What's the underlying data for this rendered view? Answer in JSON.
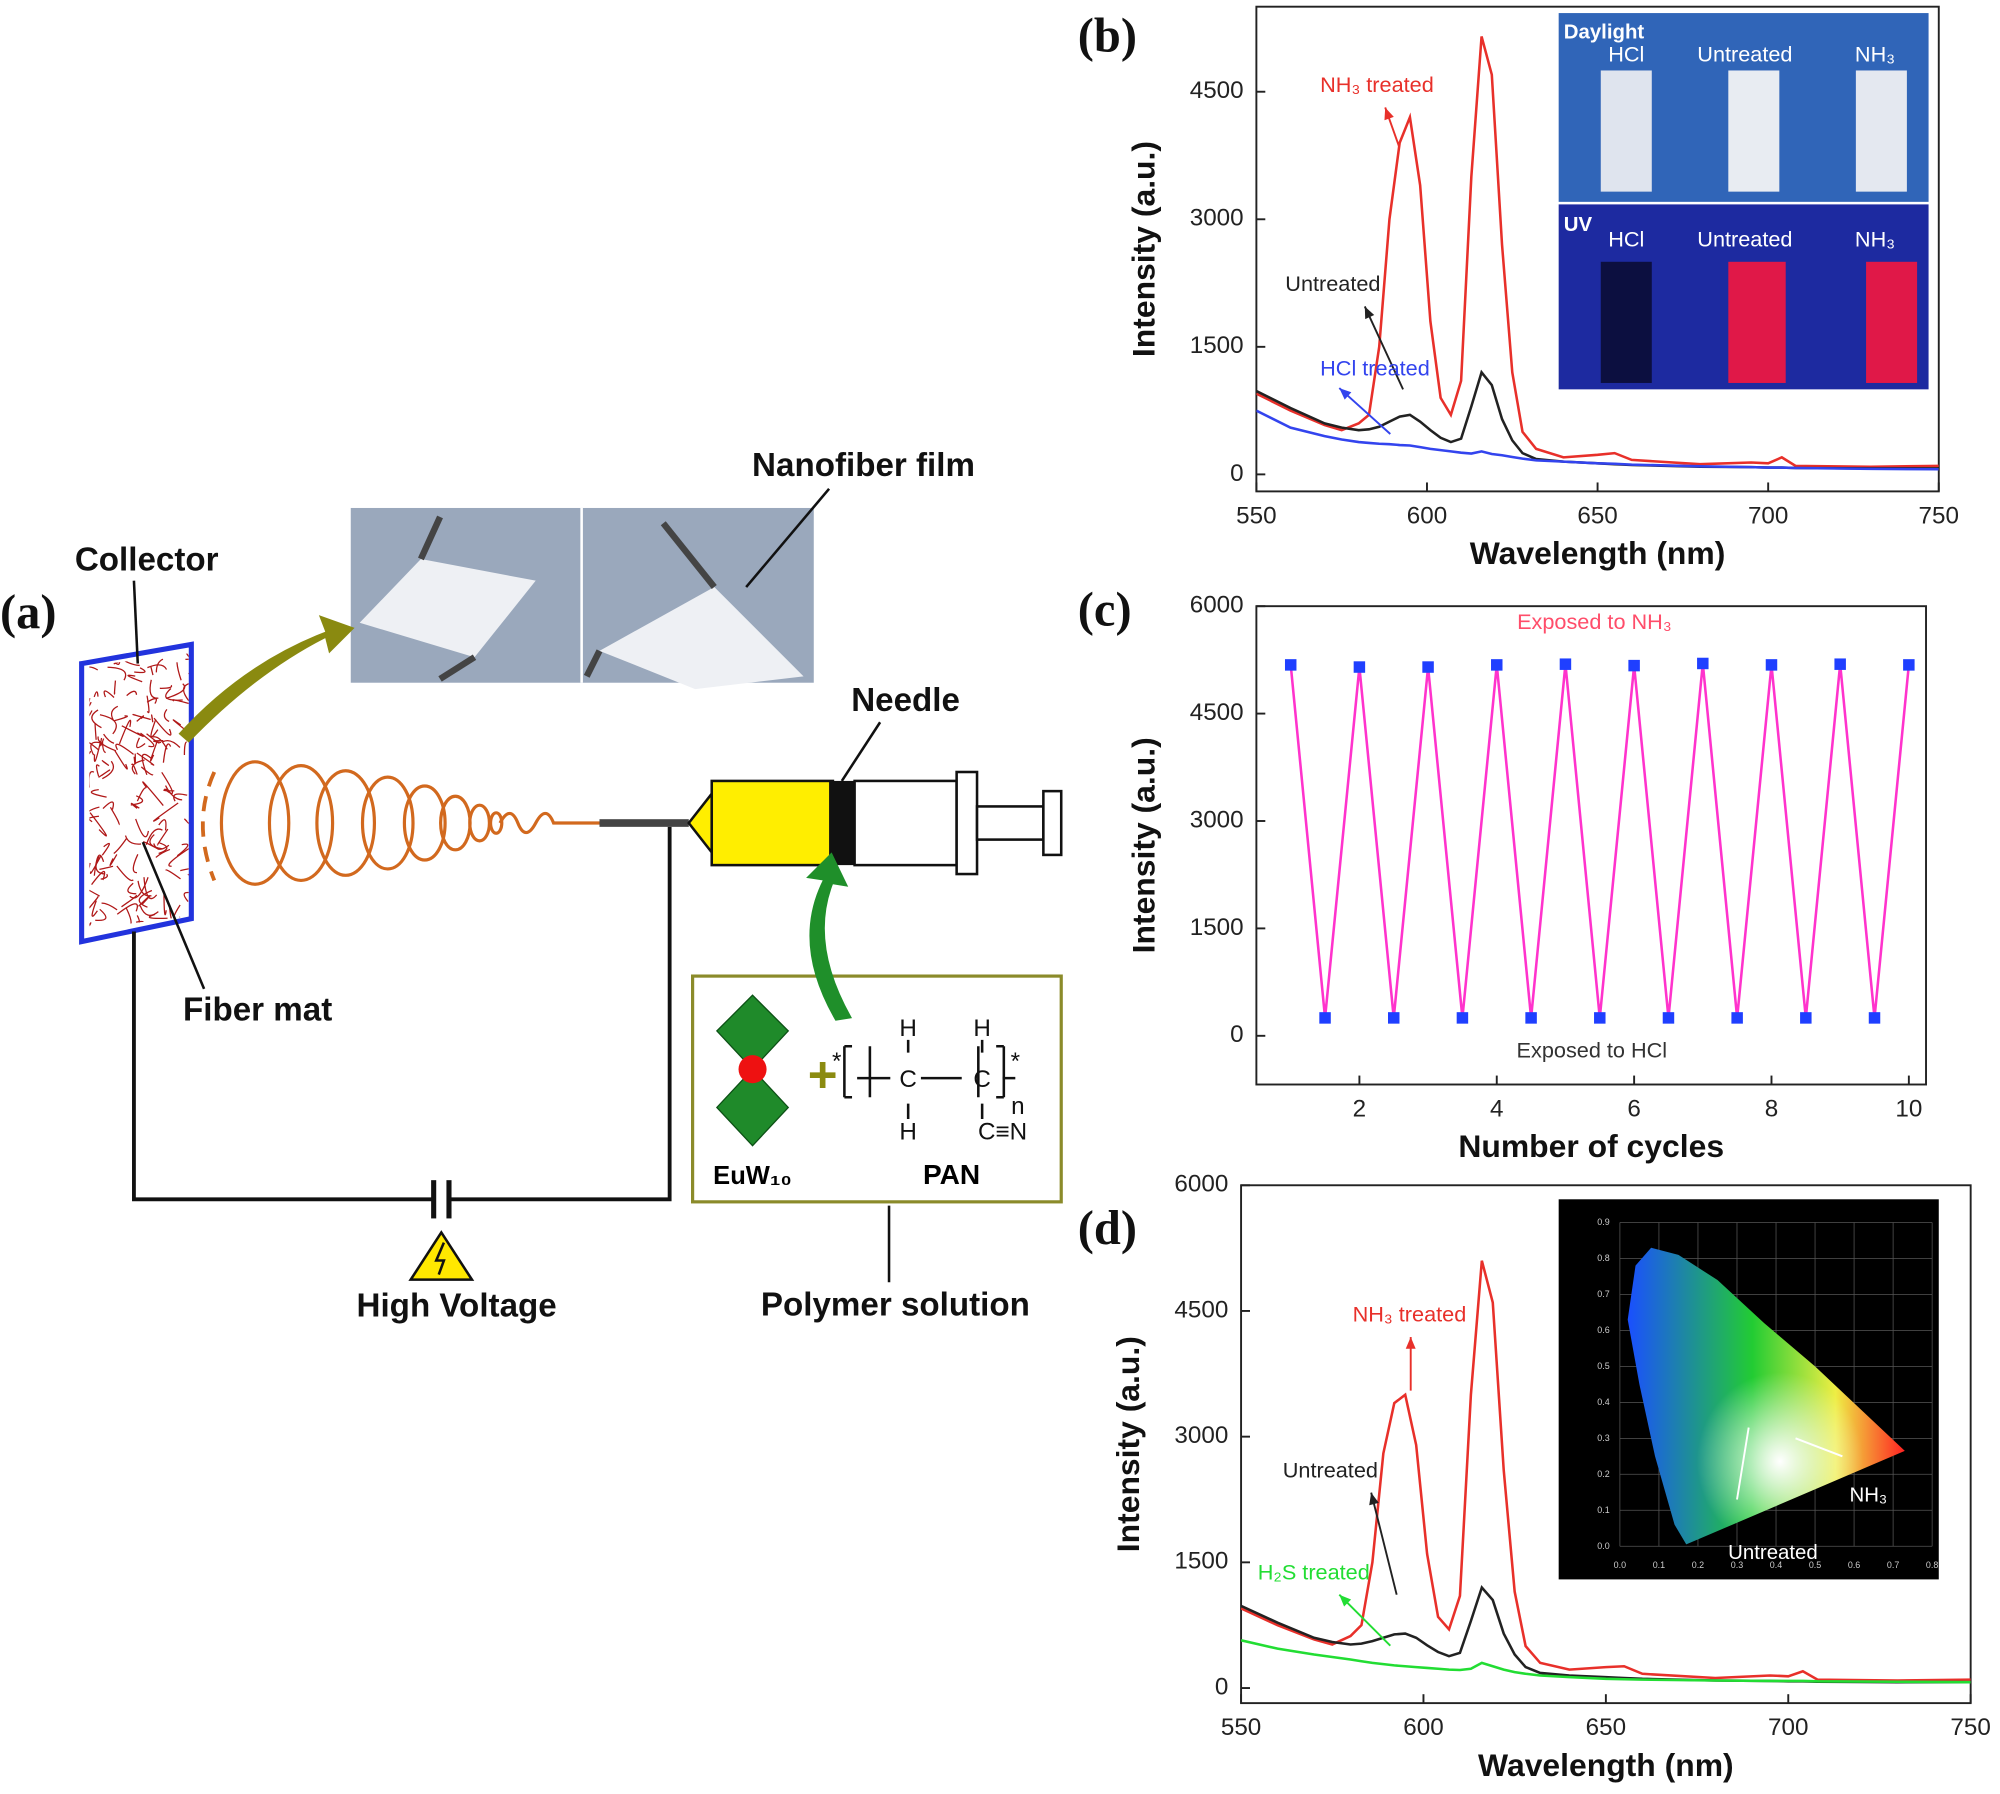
{
  "diagram": {
    "label": "(a)",
    "collector": "Collector",
    "nanofiber_film": "Nanofiber film",
    "needle": "Needle",
    "fiber_mat": "Fiber mat",
    "high_voltage": "High Voltage",
    "polymer_solution": "Polymer solution",
    "euw10": "EuW₁₀",
    "pan": "PAN",
    "plus": "+",
    "structure": {
      "h": "H",
      "c": "C",
      "cn": "C≡N",
      "n": "n",
      "star": "*"
    }
  },
  "chart_data": [
    {
      "type": "line",
      "label": "(b)",
      "xlabel": "Wavelength (nm)",
      "ylabel": "Intensity (a.u.)",
      "x": [
        550,
        560,
        570,
        575,
        580,
        583,
        586,
        589,
        592,
        595,
        598,
        601,
        604,
        607,
        610,
        613,
        616,
        619,
        622,
        625,
        628,
        632,
        640,
        650,
        655,
        660,
        680,
        695,
        700,
        704,
        708,
        730,
        750
      ],
      "xlim": [
        550,
        750
      ],
      "xticks": [
        550,
        600,
        650,
        700,
        750
      ],
      "ylim": [
        -200,
        5500
      ],
      "yticks": [
        0,
        1500,
        3000,
        4500
      ],
      "series": [
        {
          "color": "#e8302a",
          "values": [
            950,
            750,
            580,
            520,
            600,
            700,
            1500,
            3000,
            3900,
            4200,
            3400,
            1800,
            900,
            700,
            1100,
            3500,
            5150,
            4700,
            2700,
            1200,
            500,
            300,
            200,
            230,
            250,
            170,
            120,
            140,
            130,
            200,
            100,
            90,
            100
          ]
        },
        {
          "color": "#222222",
          "values": [
            980,
            780,
            600,
            550,
            520,
            530,
            560,
            620,
            680,
            700,
            620,
            520,
            430,
            380,
            420,
            800,
            1200,
            1050,
            650,
            400,
            250,
            180,
            150,
            130,
            120,
            110,
            90,
            85,
            80,
            80,
            75,
            70,
            70
          ]
        },
        {
          "color": "#3344ee",
          "values": [
            750,
            550,
            450,
            410,
            380,
            370,
            360,
            355,
            345,
            340,
            320,
            300,
            285,
            270,
            255,
            245,
            270,
            240,
            225,
            205,
            185,
            165,
            150,
            130,
            125,
            115,
            95,
            85,
            80,
            80,
            75,
            65,
            60
          ]
        }
      ],
      "annotations": [
        {
          "text": "NH₃ treated",
          "color": "#e8302a"
        },
        {
          "text": "Untreated",
          "color": "#222222"
        },
        {
          "text": "HCl treated",
          "color": "#3344ee"
        }
      ],
      "inset": {
        "daylight": "Daylight",
        "uv": "UV",
        "samples": [
          "HCl",
          "Untreated",
          "NH₃"
        ]
      }
    },
    {
      "type": "line",
      "label": "(c)",
      "xlabel": "Number of cycles",
      "ylabel": "Intensity (a.u.)",
      "x": [
        1,
        1.5,
        2,
        2.5,
        3,
        3.5,
        4,
        4.5,
        5,
        5.5,
        6,
        6.5,
        7,
        7.5,
        8,
        8.5,
        9,
        9.5,
        10
      ],
      "xlim": [
        0.5,
        10.25
      ],
      "xticks": [
        2,
        4,
        6,
        8,
        10
      ],
      "ylim": [
        -680,
        6000
      ],
      "yticks": [
        0,
        1500,
        3000,
        4500,
        6000
      ],
      "series": [
        {
          "color": "#ff33cc",
          "marker": "square",
          "marker_color": "#1f3fff",
          "values": [
            5180,
            250,
            5150,
            250,
            5150,
            250,
            5180,
            250,
            5190,
            250,
            5170,
            250,
            5200,
            250,
            5180,
            250,
            5190,
            250,
            5180
          ]
        }
      ],
      "annotations": [
        {
          "text": "Exposed to NH₃",
          "color": "#ff4d6a"
        },
        {
          "text": "Exposed to HCl",
          "color": "#333333"
        }
      ]
    },
    {
      "type": "line",
      "label": "(d)",
      "xlabel": "Wavelength (nm)",
      "ylabel": "Intensity (a.u.)",
      "x": [
        550,
        560,
        570,
        575,
        580,
        583,
        586,
        589,
        592,
        595,
        598,
        601,
        604,
        607,
        610,
        613,
        616,
        619,
        622,
        625,
        628,
        632,
        640,
        650,
        655,
        660,
        680,
        695,
        700,
        704,
        708,
        730,
        750
      ],
      "xlim": [
        550,
        750
      ],
      "xticks": [
        550,
        600,
        650,
        700,
        750
      ],
      "ylim": [
        -180,
        6000
      ],
      "yticks": [
        0,
        1500,
        3000,
        4500,
        6000
      ],
      "series": [
        {
          "color": "#e8302a",
          "values": [
            950,
            750,
            580,
            520,
            620,
            750,
            1500,
            2800,
            3400,
            3500,
            2900,
            1600,
            850,
            700,
            1100,
            3500,
            5100,
            4600,
            2600,
            1150,
            500,
            300,
            220,
            250,
            260,
            170,
            120,
            150,
            140,
            200,
            100,
            90,
            100
          ]
        },
        {
          "color": "#222222",
          "values": [
            980,
            780,
            600,
            550,
            520,
            530,
            560,
            600,
            640,
            650,
            600,
            510,
            430,
            380,
            420,
            800,
            1200,
            1050,
            650,
            400,
            250,
            180,
            150,
            130,
            120,
            110,
            90,
            85,
            80,
            80,
            75,
            70,
            70
          ]
        },
        {
          "color": "#22dd33",
          "values": [
            570,
            470,
            400,
            370,
            340,
            320,
            300,
            285,
            270,
            260,
            250,
            240,
            230,
            220,
            215,
            230,
            300,
            260,
            220,
            190,
            170,
            150,
            130,
            110,
            105,
            100,
            90,
            85,
            85,
            85,
            80,
            75,
            70
          ]
        }
      ],
      "annotations": [
        {
          "text": "NH₃ treated",
          "color": "#e8302a"
        },
        {
          "text": "Untreated",
          "color": "#222222"
        },
        {
          "text": "H₂S treated",
          "color": "#22dd33"
        }
      ],
      "inset": {
        "xticks": [
          {
            "value": 0,
            "label": "0.0"
          },
          0.1,
          0.2,
          0.3,
          0.4,
          0.5,
          0.6,
          0.7,
          0.8
        ],
        "yticks": [
          {
            "value": 0,
            "label": "0.0"
          },
          0.1,
          0.2,
          0.3,
          0.4,
          0.5,
          0.6,
          0.7,
          0.8,
          0.9
        ],
        "labels": [
          "NH₃",
          "Untreated"
        ]
      }
    }
  ]
}
